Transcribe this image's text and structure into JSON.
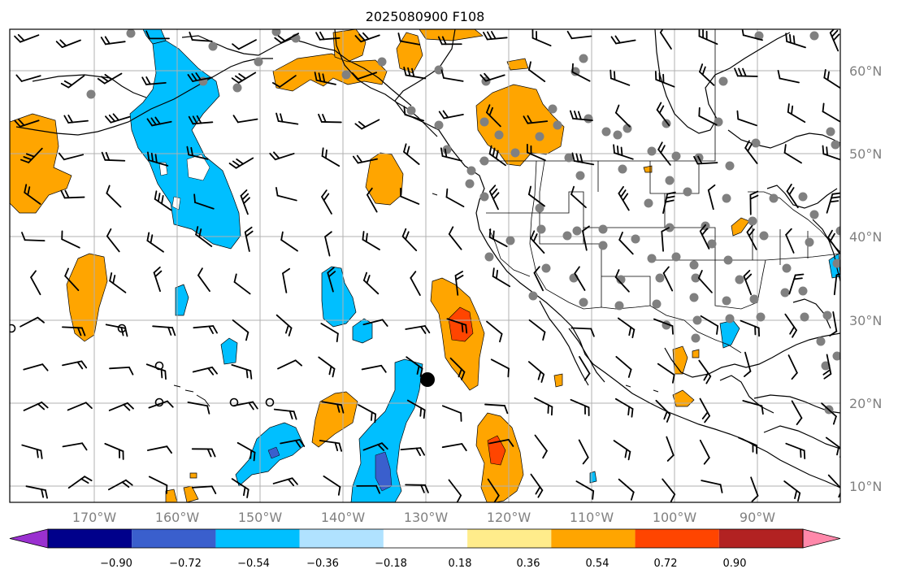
{
  "title": "2025080900 F108",
  "map": {
    "lon_labels": [
      "170°W",
      "160°W",
      "150°W",
      "140°W",
      "130°W",
      "120°W",
      "110°W",
      "100°W",
      "90°W"
    ],
    "lat_labels": [
      "60°N",
      "50°N",
      "40°N",
      "30°N",
      "20°N",
      "10°N"
    ],
    "label_color": "#808080",
    "ocean_color": "#ffffff",
    "gridline_color": "#b0b0b0",
    "storm_marker": "black-dot"
  },
  "colorbar": {
    "colors": [
      "#9a30d0",
      "#00008b",
      "#3a5fcd",
      "#00bfff",
      "#b0e2ff",
      "#ffffff",
      "#ffec8b",
      "#ffa500",
      "#ff4500",
      "#b22222",
      "#ff88aa"
    ],
    "ticks": [
      "−0.90",
      "−0.72",
      "−0.54",
      "−0.36",
      "−0.18",
      "0.18",
      "0.36",
      "0.54",
      "0.72",
      "0.90"
    ]
  }
}
